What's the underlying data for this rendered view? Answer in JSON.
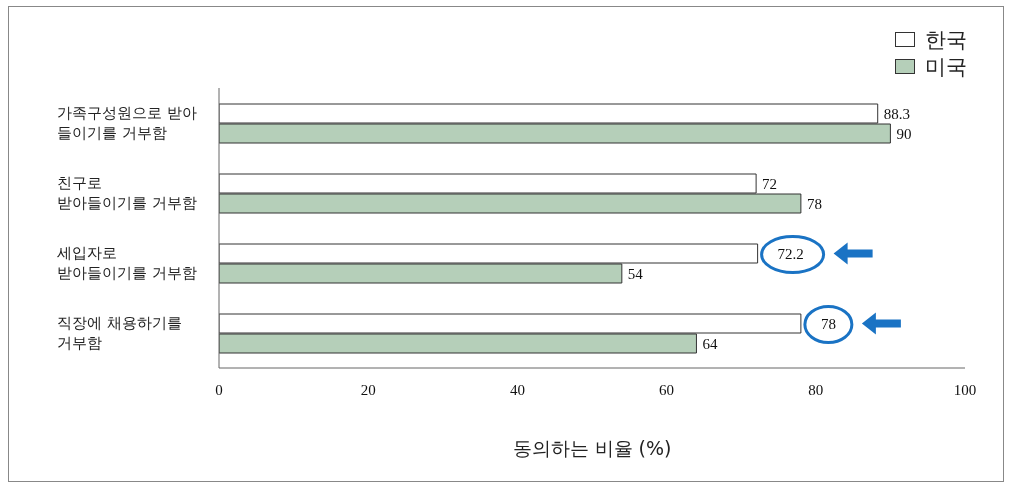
{
  "chart_data": {
    "type": "bar",
    "orientation": "horizontal",
    "xlabel": "동의하는 비율 (%)",
    "categories": [
      "가족구성원으로 받아\n들이기를 거부함",
      "친구로\n받아들이기를 거부함",
      "세입자로\n받아들이기를 거부함",
      "직장에 채용하기를\n거부함"
    ],
    "series": [
      {
        "name": "한국",
        "color": "#ffffff",
        "values": [
          88.3,
          72,
          72.2,
          78
        ]
      },
      {
        "name": "미국",
        "color": "#b5cfb9",
        "values": [
          90,
          78,
          54,
          64
        ]
      }
    ],
    "xlim": [
      0,
      100
    ],
    "xticks": [
      0,
      20,
      40,
      60,
      80,
      100
    ],
    "data_labels": true,
    "grid": false,
    "legend": "top right"
  }
}
